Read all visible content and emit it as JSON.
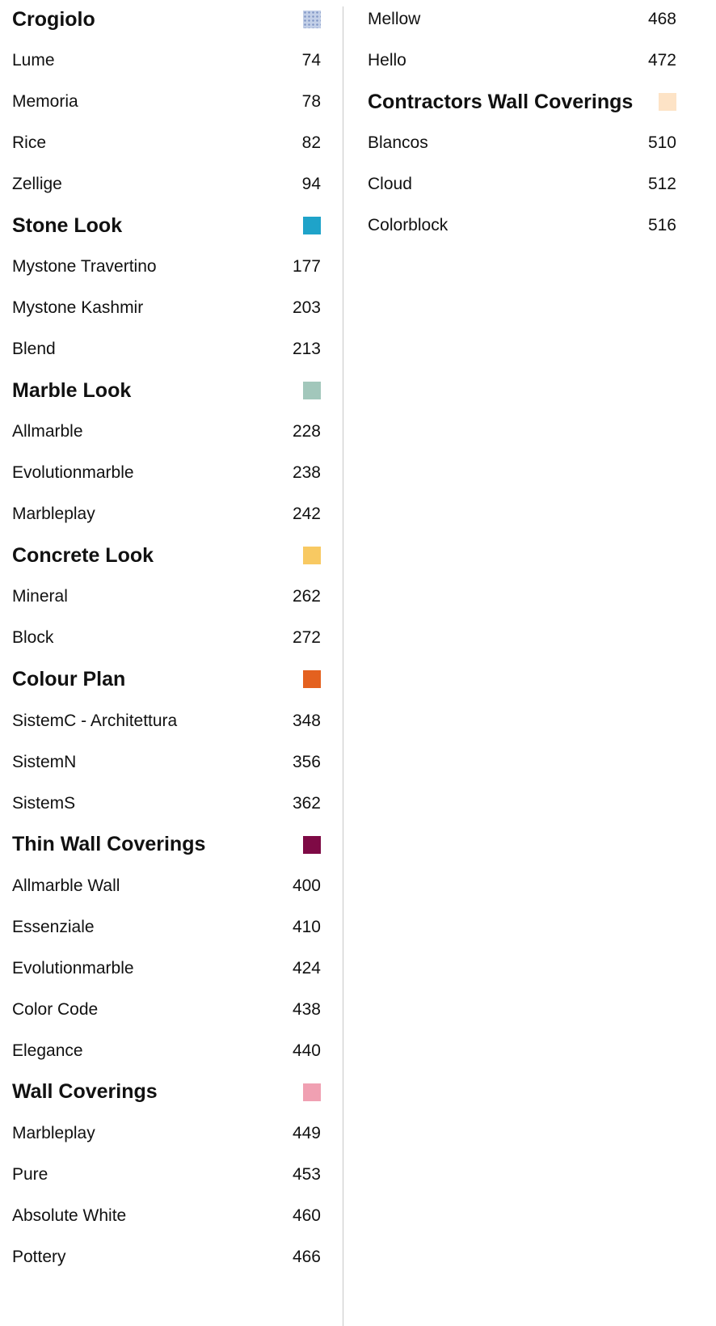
{
  "sections": [
    {
      "title": "Crogiolo",
      "color": "#c3d0e8",
      "items": [
        {
          "name": "Lume",
          "page": "74"
        },
        {
          "name": "Memoria",
          "page": "78"
        },
        {
          "name": "Rice",
          "page": "82"
        },
        {
          "name": "Zellige",
          "page": "94"
        }
      ]
    },
    {
      "title": "Stone Look",
      "color": "#1fa3c9",
      "items": [
        {
          "name": "Mystone Travertino",
          "page": "177"
        },
        {
          "name": "Mystone Kashmir",
          "page": "203"
        },
        {
          "name": "Blend",
          "page": "213"
        }
      ]
    },
    {
      "title": "Marble Look",
      "color": "#a2c7bb",
      "items": [
        {
          "name": "Allmarble",
          "page": "228"
        },
        {
          "name": "Evolutionmarble",
          "page": "238"
        },
        {
          "name": "Marbleplay",
          "page": "242"
        }
      ]
    },
    {
      "title": "Concrete Look",
      "color": "#f8c962",
      "items": [
        {
          "name": "Mineral",
          "page": "262"
        },
        {
          "name": "Block",
          "page": "272"
        }
      ]
    },
    {
      "title": "Colour Plan",
      "color": "#e4611f",
      "items": [
        {
          "name": "SistemC - Architettura",
          "page": "348"
        },
        {
          "name": "SistemN",
          "page": "356"
        },
        {
          "name": "SistemS",
          "page": "362"
        }
      ]
    },
    {
      "title": "Thin Wall Coverings",
      "color": "#7e0a45",
      "items": [
        {
          "name": "Allmarble Wall",
          "page": "400"
        },
        {
          "name": "Essenziale",
          "page": "410"
        },
        {
          "name": "Evolutionmarble",
          "page": "424"
        },
        {
          "name": "Color Code",
          "page": "438"
        },
        {
          "name": "Elegance",
          "page": "440"
        }
      ]
    },
    {
      "title": "Wall Coverings",
      "color": "#f0a0b2",
      "items": [
        {
          "name": "Marbleplay",
          "page": "449"
        },
        {
          "name": "Pure",
          "page": "453"
        },
        {
          "name": "Absolute White",
          "page": "460"
        },
        {
          "name": "Pottery",
          "page": "466"
        },
        {
          "name": "Mellow",
          "page": "468"
        },
        {
          "name": "Hello",
          "page": "472"
        }
      ]
    },
    {
      "title": "Contractors Wall Coverings",
      "color": "#fde3c6",
      "items": [
        {
          "name": "Blancos",
          "page": "510"
        },
        {
          "name": "Cloud",
          "page": "512"
        },
        {
          "name": "Colorblock",
          "page": "516"
        }
      ]
    }
  ]
}
